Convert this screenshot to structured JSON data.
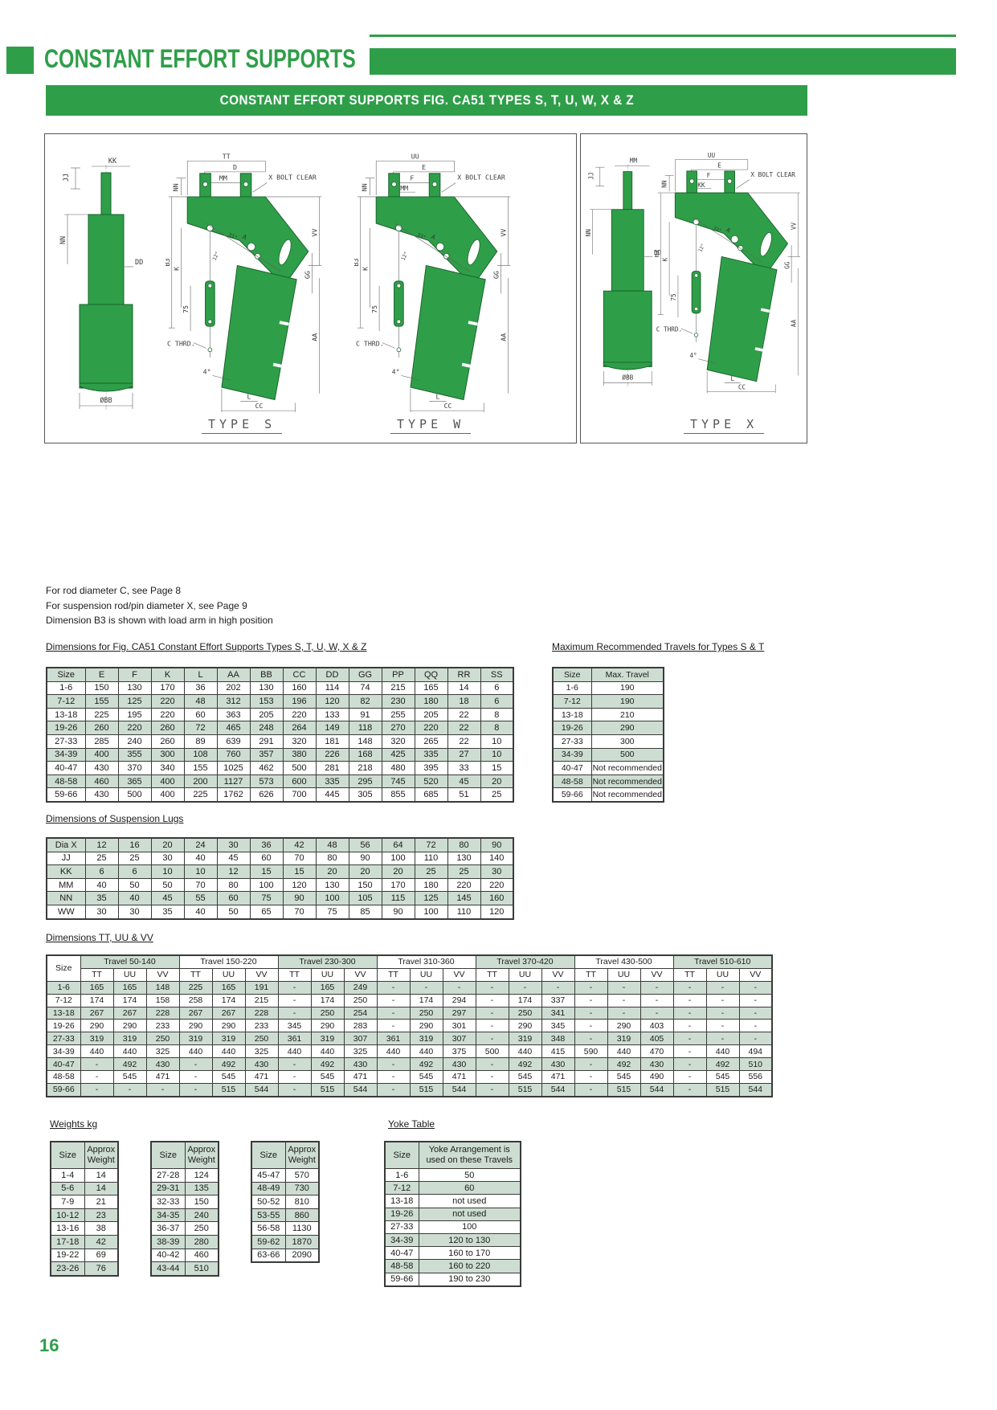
{
  "page": {
    "number": "16"
  },
  "header": {
    "title": "CONSTANT EFFORT SUPPORTS",
    "banner": "CONSTANT EFFORT SUPPORTS FIG. CA51 TYPES S, T, U, W, X & Z"
  },
  "drawings": {
    "panel_captions": [
      "TYPE S",
      "TYPE W",
      "TYPE X"
    ],
    "dims": {
      "tt": "TT",
      "d": "D",
      "mm": "MM",
      "uu": "UU",
      "e": "E",
      "f": "F",
      "kk": "KK",
      "jj": "JJ",
      "nn": "NN",
      "dd": "DD",
      "bb": "ØBB",
      "b3": "B3",
      "k": "K",
      "n75": "75",
      "cthrd": "C THRD.",
      "a": "A",
      "vv": "VV",
      "gg": "GG",
      "aa": "AA",
      "l": "L",
      "cc": "CC",
      "deg4": "4°",
      "deg33": "33°",
      "deg12": "12°",
      "xbolt": "X BOLT CLEAR"
    },
    "brackets": [
      {
        "top1": "TT",
        "top2": "D",
        "top3": "MM",
        "top4": ""
      },
      {
        "top1": "UU",
        "top2": "E",
        "top3": "F",
        "top4": "MM"
      },
      {
        "top1": "UU",
        "top2": "E",
        "top3": "F",
        "top4": "KK"
      }
    ],
    "cylinders": [
      {
        "top": "KK"
      },
      {
        "top": "MM"
      }
    ]
  },
  "notes": [
    "For rod diameter C, see Page 8",
    "For suspension rod/pin diameter X, see Page 9",
    "Dimension B3 is shown with load arm in high position"
  ],
  "dims_table": {
    "title": "Dimensions for Fig. CA51 Constant Effort Supports Types S, T, U, W, X & Z",
    "columns": [
      "Size",
      "E",
      "F",
      "K",
      "L",
      "AA",
      "BB",
      "CC",
      "DD",
      "GG",
      "PP",
      "QQ",
      "RR",
      "SS"
    ],
    "rows": [
      [
        "1-6",
        "150",
        "130",
        "170",
        "36",
        "202",
        "130",
        "160",
        "114",
        "74",
        "215",
        "165",
        "14",
        "6"
      ],
      [
        "7-12",
        "155",
        "125",
        "220",
        "48",
        "312",
        "153",
        "196",
        "120",
        "82",
        "230",
        "180",
        "18",
        "6"
      ],
      [
        "13-18",
        "225",
        "195",
        "220",
        "60",
        "363",
        "205",
        "220",
        "133",
        "91",
        "255",
        "205",
        "22",
        "8"
      ],
      [
        "19-26",
        "260",
        "220",
        "260",
        "72",
        "465",
        "248",
        "264",
        "149",
        "118",
        "270",
        "220",
        "22",
        "8"
      ],
      [
        "27-33",
        "285",
        "240",
        "260",
        "89",
        "639",
        "291",
        "320",
        "181",
        "148",
        "320",
        "265",
        "22",
        "10"
      ],
      [
        "34-39",
        "400",
        "355",
        "300",
        "108",
        "760",
        "357",
        "380",
        "226",
        "168",
        "425",
        "335",
        "27",
        "10"
      ],
      [
        "40-47",
        "430",
        "370",
        "340",
        "155",
        "1025",
        "462",
        "500",
        "281",
        "218",
        "480",
        "395",
        "33",
        "15"
      ],
      [
        "48-58",
        "460",
        "365",
        "400",
        "200",
        "1127",
        "573",
        "600",
        "335",
        "295",
        "745",
        "520",
        "45",
        "20"
      ],
      [
        "59-66",
        "430",
        "500",
        "400",
        "225",
        "1762",
        "626",
        "700",
        "445",
        "305",
        "855",
        "685",
        "51",
        "25"
      ]
    ]
  },
  "travel_table": {
    "title": "Maximum Recommended Travels for Types S & T",
    "columns": [
      "Size",
      "Max. Travel"
    ],
    "rows": [
      [
        "1-6",
        "190"
      ],
      [
        "7-12",
        "190"
      ],
      [
        "13-18",
        "210"
      ],
      [
        "19-26",
        "290"
      ],
      [
        "27-33",
        "300"
      ],
      [
        "34-39",
        "500"
      ],
      [
        "40-47",
        "Not recommended"
      ],
      [
        "48-58",
        "Not recommended"
      ],
      [
        "59-66",
        "Not recommended"
      ]
    ]
  },
  "lugs_table": {
    "title": "Dimensions of Suspension Lugs",
    "rows": [
      [
        "Dia X",
        "12",
        "16",
        "20",
        "24",
        "30",
        "36",
        "42",
        "48",
        "56",
        "64",
        "72",
        "80",
        "90"
      ],
      [
        "JJ",
        "25",
        "25",
        "30",
        "40",
        "45",
        "60",
        "70",
        "80",
        "90",
        "100",
        "110",
        "130",
        "140"
      ],
      [
        "KK",
        "6",
        "6",
        "10",
        "10",
        "12",
        "15",
        "15",
        "20",
        "20",
        "20",
        "25",
        "25",
        "30"
      ],
      [
        "MM",
        "40",
        "50",
        "50",
        "70",
        "80",
        "100",
        "120",
        "130",
        "150",
        "170",
        "180",
        "220",
        "220"
      ],
      [
        "NN",
        "35",
        "40",
        "45",
        "55",
        "60",
        "75",
        "90",
        "100",
        "105",
        "115",
        "125",
        "145",
        "160"
      ],
      [
        "WW",
        "30",
        "30",
        "35",
        "40",
        "50",
        "65",
        "70",
        "75",
        "85",
        "90",
        "100",
        "110",
        "120"
      ]
    ]
  },
  "ttuuvv_table": {
    "title": "Dimensions TT, UU & VV",
    "size_header": "Size",
    "groups": [
      "Travel 50-140",
      "Travel 150-220",
      "Travel 230-300",
      "Travel 310-360",
      "Travel 370-420",
      "Travel 430-500",
      "Travel 510-610"
    ],
    "sub_columns": [
      "TT",
      "UU",
      "VV"
    ],
    "rows": [
      [
        "1-6",
        "165",
        "165",
        "148",
        "225",
        "165",
        "191",
        "-",
        "165",
        "249",
        "-",
        "-",
        "-",
        "-",
        "-",
        "-",
        "-",
        "-",
        "-",
        "-",
        "-",
        "-"
      ],
      [
        "7-12",
        "174",
        "174",
        "158",
        "258",
        "174",
        "215",
        "-",
        "174",
        "250",
        "-",
        "174",
        "294",
        "-",
        "174",
        "337",
        "-",
        "-",
        "-",
        "-",
        "-",
        "-"
      ],
      [
        "13-18",
        "267",
        "267",
        "228",
        "267",
        "267",
        "228",
        "-",
        "250",
        "254",
        "-",
        "250",
        "297",
        "-",
        "250",
        "341",
        "-",
        "-",
        "-",
        "-",
        "-",
        "-"
      ],
      [
        "19-26",
        "290",
        "290",
        "233",
        "290",
        "290",
        "233",
        "345",
        "290",
        "283",
        "-",
        "290",
        "301",
        "-",
        "290",
        "345",
        "-",
        "290",
        "403",
        "-",
        "-",
        "-"
      ],
      [
        "27-33",
        "319",
        "319",
        "250",
        "319",
        "319",
        "250",
        "361",
        "319",
        "307",
        "361",
        "319",
        "307",
        "-",
        "319",
        "348",
        "-",
        "319",
        "405",
        "-",
        "-",
        "-"
      ],
      [
        "34-39",
        "440",
        "440",
        "325",
        "440",
        "440",
        "325",
        "440",
        "440",
        "325",
        "440",
        "440",
        "375",
        "500",
        "440",
        "415",
        "590",
        "440",
        "470",
        "-",
        "440",
        "494"
      ],
      [
        "40-47",
        "-",
        "492",
        "430",
        "-",
        "492",
        "430",
        "-",
        "492",
        "430",
        "-",
        "492",
        "430",
        "-",
        "492",
        "430",
        "-",
        "492",
        "430",
        "-",
        "492",
        "510"
      ],
      [
        "48-58",
        "-",
        "545",
        "471",
        "-",
        "545",
        "471",
        "-",
        "545",
        "471",
        "-",
        "545",
        "471",
        "-",
        "545",
        "471",
        "-",
        "545",
        "490",
        "-",
        "545",
        "556"
      ],
      [
        "59-66",
        "-",
        "-",
        "-",
        "-",
        "515",
        "544",
        "-",
        "515",
        "544",
        "-",
        "515",
        "544",
        "-",
        "515",
        "544",
        "-",
        "515",
        "544",
        "-",
        "515",
        "544"
      ]
    ]
  },
  "weights": {
    "title": "Weights kg",
    "tables": [
      {
        "columns": [
          "Size",
          "Approx Weight"
        ],
        "rows": [
          [
            "1-4",
            "14"
          ],
          [
            "5-6",
            "14"
          ],
          [
            "7-9",
            "21"
          ],
          [
            "10-12",
            "23"
          ],
          [
            "13-16",
            "38"
          ],
          [
            "17-18",
            "42"
          ],
          [
            "19-22",
            "69"
          ],
          [
            "23-26",
            "76"
          ]
        ]
      },
      {
        "columns": [
          "Size",
          "Approx Weight"
        ],
        "rows": [
          [
            "27-28",
            "124"
          ],
          [
            "29-31",
            "135"
          ],
          [
            "32-33",
            "150"
          ],
          [
            "34-35",
            "240"
          ],
          [
            "36-37",
            "250"
          ],
          [
            "38-39",
            "280"
          ],
          [
            "40-42",
            "460"
          ],
          [
            "43-44",
            "510"
          ]
        ]
      },
      {
        "columns": [
          "Size",
          "Approx Weight"
        ],
        "rows": [
          [
            "45-47",
            "570"
          ],
          [
            "48-49",
            "730"
          ],
          [
            "50-52",
            "810"
          ],
          [
            "53-55",
            "860"
          ],
          [
            "56-58",
            "1130"
          ],
          [
            "59-62",
            "1870"
          ],
          [
            "63-66",
            "2090"
          ]
        ]
      }
    ]
  },
  "yoke_table": {
    "title": "Yoke Table",
    "columns": [
      "Size",
      "Yoke Arrangement is used on these Travels"
    ],
    "rows": [
      [
        "1-6",
        "50"
      ],
      [
        "7-12",
        "60"
      ],
      [
        "13-18",
        "not used"
      ],
      [
        "19-26",
        "not used"
      ],
      [
        "27-33",
        "100"
      ],
      [
        "34-39",
        "120 to 130"
      ],
      [
        "40-47",
        "160 to 170"
      ],
      [
        "48-58",
        "160 to 220"
      ],
      [
        "59-66",
        "190 to 230"
      ]
    ]
  },
  "colors": {
    "green": "#2f9e49",
    "table_fill": "#cdddd2"
  }
}
